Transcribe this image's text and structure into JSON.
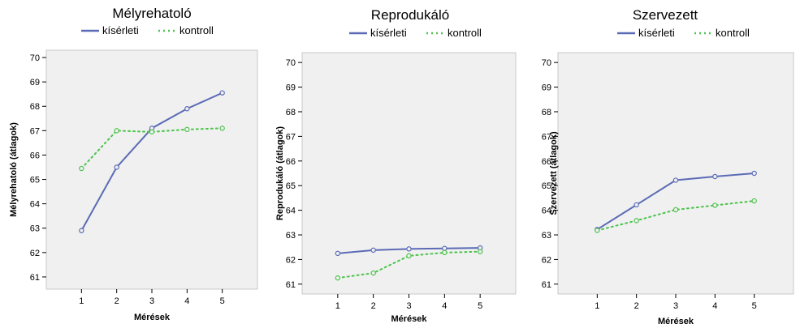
{
  "chart_data": [
    {
      "type": "line",
      "title": "Mélyrehatoló",
      "xlabel": "Mérések",
      "ylabel": "Mélyrehatoló (átlagok)",
      "x": [
        1,
        2,
        3,
        4,
        5
      ],
      "x_ticks": [
        "1",
        "2",
        "3",
        "4",
        "5"
      ],
      "ylim": [
        60.5,
        70.3
      ],
      "y_ticks": [
        "61",
        "62",
        "63",
        "64",
        "65",
        "66",
        "67",
        "68",
        "69",
        "70"
      ],
      "legend_position": "top",
      "series": [
        {
          "name": "kísérleti",
          "values": [
            62.9,
            65.5,
            67.1,
            67.9,
            68.55
          ],
          "color": "#5b6bb5",
          "style": "solid"
        },
        {
          "name": "kontroll",
          "values": [
            65.45,
            67.0,
            66.95,
            67.05,
            67.1
          ],
          "color": "#4cc44c",
          "style": "dotted"
        }
      ]
    },
    {
      "type": "line",
      "title": "Reprodukáló",
      "xlabel": "Mérések",
      "ylabel": "Reprodukáló (átlagok)",
      "x": [
        1,
        2,
        3,
        4,
        5
      ],
      "x_ticks": [
        "1",
        "2",
        "3",
        "4",
        "5"
      ],
      "ylim": [
        60.6,
        70.4
      ],
      "y_ticks": [
        "61",
        "62",
        "63",
        "64",
        "65",
        "66",
        "67",
        "68",
        "69",
        "70"
      ],
      "legend_position": "top",
      "series": [
        {
          "name": "kísérleti",
          "values": [
            62.25,
            62.38,
            62.43,
            62.45,
            62.47
          ],
          "color": "#5b6bb5",
          "style": "solid"
        },
        {
          "name": "kontroll",
          "values": [
            61.25,
            61.45,
            62.15,
            62.28,
            62.32
          ],
          "color": "#4cc44c",
          "style": "dotted"
        }
      ]
    },
    {
      "type": "line",
      "title": "Szervezett",
      "xlabel": "Mérések",
      "ylabel": "Szervezett (átlagok)",
      "x": [
        1,
        2,
        3,
        4,
        5
      ],
      "x_ticks": [
        "1",
        "2",
        "3",
        "4",
        "5"
      ],
      "ylim": [
        60.6,
        70.4
      ],
      "y_ticks": [
        "61",
        "62",
        "63",
        "64",
        "65",
        "66",
        "67",
        "68",
        "69",
        "70"
      ],
      "legend_position": "top",
      "series": [
        {
          "name": "kísérleti",
          "values": [
            63.22,
            64.22,
            65.22,
            65.37,
            65.5
          ],
          "color": "#5b6bb5",
          "style": "solid"
        },
        {
          "name": "kontroll",
          "values": [
            63.18,
            63.58,
            64.02,
            64.2,
            64.38
          ],
          "color": "#4cc44c",
          "style": "dotted"
        }
      ]
    }
  ],
  "style": {
    "plot_background": "#f0f0f0",
    "plot_border": "#c8c8c8"
  }
}
